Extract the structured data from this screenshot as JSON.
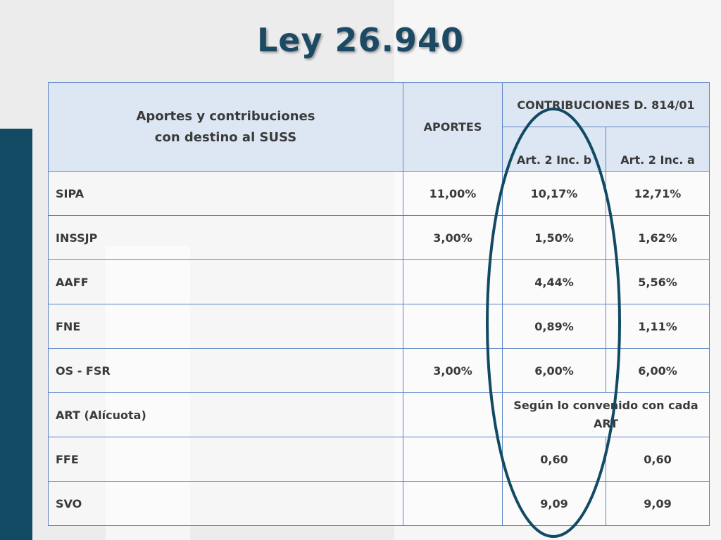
{
  "title": "Ley 26.940",
  "table": {
    "header": {
      "col1_line1": "Aportes y contribuciones",
      "col1_line2": "con destino al SUSS",
      "col2": "APORTES",
      "group": "CONTRIBUCIONES D. 814/01",
      "sub_b": "Art. 2 Inc. b",
      "sub_a": "Art. 2 Inc. a"
    },
    "rows": [
      {
        "label": "SIPA",
        "aportes": "11,00%",
        "inc_b": "10,17%",
        "inc_a": "12,71%"
      },
      {
        "label": "INSSJP",
        "aportes": "3,00%",
        "inc_b": "1,50%",
        "inc_a": "1,62%"
      },
      {
        "label": "AAFF",
        "aportes": "",
        "inc_b": "4,44%",
        "inc_a": "5,56%"
      },
      {
        "label": "FNE",
        "aportes": "",
        "inc_b": "0,89%",
        "inc_a": "1,11%"
      },
      {
        "label": "OS - FSR",
        "aportes": "3,00%",
        "inc_b": "6,00%",
        "inc_a": "6,00%"
      },
      {
        "label": "ART (Alícuota)",
        "aportes": "",
        "merged": "Según lo convenido con cada ART"
      },
      {
        "label": "FFE",
        "aportes": "",
        "inc_b": "0,60",
        "inc_a": "0,60"
      },
      {
        "label": "SVO",
        "aportes": "",
        "inc_b": "9,09",
        "inc_a": "9,09"
      }
    ]
  },
  "colors": {
    "title": "#1c4a64",
    "side_bar": "#124a64",
    "header_fill": "#dde7f4",
    "border": "#5a84c4",
    "ellipse": "#124a64"
  }
}
